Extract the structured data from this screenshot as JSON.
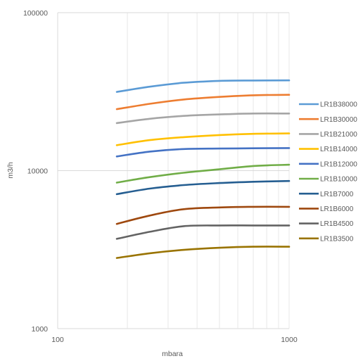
{
  "chart_data": {
    "type": "line",
    "title": "",
    "xlabel": "mbara",
    "ylabel": "m3/h",
    "x_scale": "log",
    "y_scale": "log",
    "xlim": [
      100,
      1000
    ],
    "ylim": [
      1000,
      100000
    ],
    "x_ticks": [
      "100",
      "1000"
    ],
    "y_ticks": [
      "1000",
      "10000",
      "100000"
    ],
    "grid": "log gridlines",
    "legend_position": "right",
    "series": [
      {
        "name": "LR1B38000",
        "color": "#5B9BD5",
        "x": [
          180,
          250,
          350,
          500,
          700,
          1000
        ],
        "y": [
          31500,
          34000,
          36000,
          37000,
          37200,
          37300
        ]
      },
      {
        "name": "LR1B30000",
        "color": "#ED7D31",
        "x": [
          180,
          250,
          350,
          500,
          700,
          1000
        ],
        "y": [
          24500,
          26500,
          28200,
          29300,
          30000,
          30200
        ]
      },
      {
        "name": "LR1B21000",
        "color": "#A5A5A5",
        "x": [
          180,
          250,
          350,
          500,
          700,
          1000
        ],
        "y": [
          20000,
          21300,
          22200,
          22700,
          23000,
          23000
        ]
      },
      {
        "name": "LR1B14000",
        "color": "#FFC000",
        "x": [
          180,
          250,
          350,
          500,
          700,
          1000
        ],
        "y": [
          14500,
          15600,
          16300,
          16800,
          17100,
          17200
        ]
      },
      {
        "name": "LR1B12000",
        "color": "#4472C4",
        "x": [
          180,
          250,
          350,
          500,
          700,
          1000
        ],
        "y": [
          12300,
          13200,
          13700,
          13800,
          13850,
          13900
        ]
      },
      {
        "name": "LR1B10000",
        "color": "#70AD47",
        "x": [
          180,
          250,
          350,
          500,
          700,
          1000
        ],
        "y": [
          8400,
          9100,
          9700,
          10200,
          10700,
          10900
        ]
      },
      {
        "name": "LR1B7000",
        "color": "#255E91",
        "x": [
          180,
          250,
          350,
          500,
          700,
          1000
        ],
        "y": [
          7100,
          7700,
          8100,
          8350,
          8500,
          8600
        ]
      },
      {
        "name": "LR1B6000",
        "color": "#9E480E",
        "x": [
          180,
          250,
          350,
          500,
          700,
          1000
        ],
        "y": [
          4600,
          5200,
          5700,
          5850,
          5900,
          5900
        ]
      },
      {
        "name": "LR1B4500",
        "color": "#636363",
        "x": [
          180,
          250,
          350,
          500,
          700,
          1000
        ],
        "y": [
          3700,
          4100,
          4450,
          4500,
          4500,
          4500
        ]
      },
      {
        "name": "LR1B3500",
        "color": "#997300",
        "x": [
          180,
          250,
          350,
          500,
          700,
          1000
        ],
        "y": [
          2800,
          3000,
          3150,
          3250,
          3300,
          3300
        ]
      }
    ]
  }
}
